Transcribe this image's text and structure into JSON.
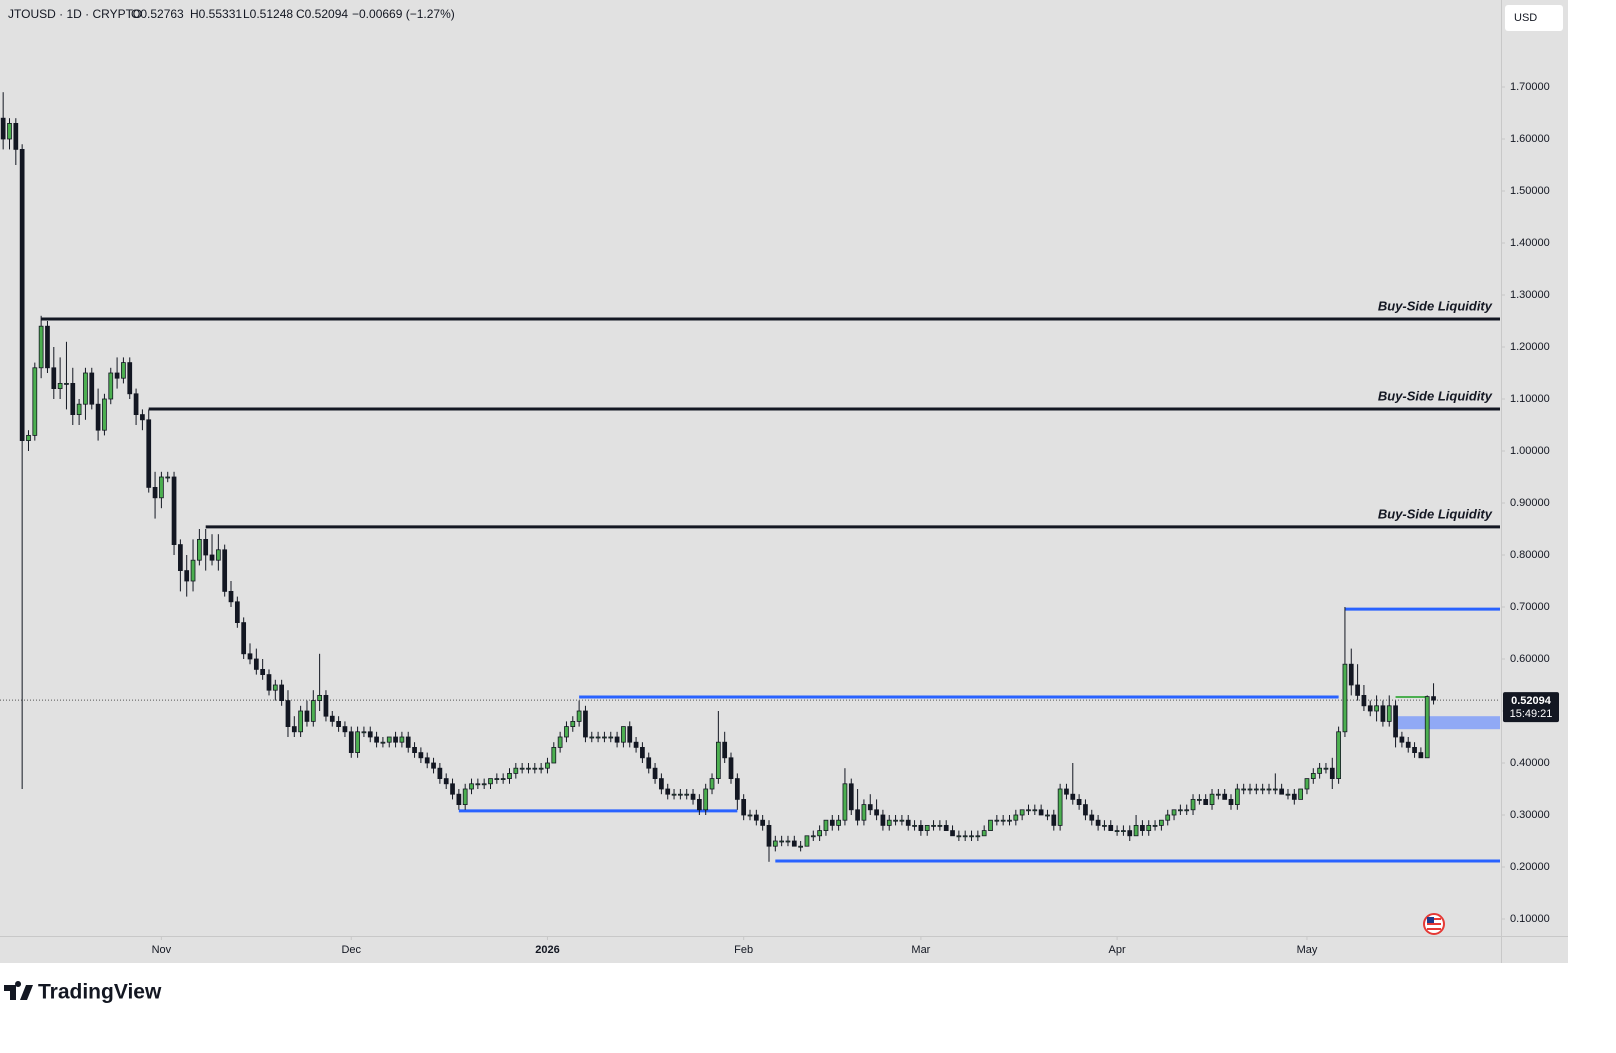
{
  "chart_data": {
    "type": "candlestick",
    "header": {
      "symbol": "JTOUSD · 1D · CRYPTO",
      "open": "O0.52763",
      "high": "H0.55331",
      "low": "L0.51248",
      "close": "C0.52094",
      "change": "−0.00669 (−1.27%)"
    },
    "currency": "USD",
    "xlim": [
      -0.5,
      236.5
    ],
    "xticks": [
      {
        "value": 25,
        "label": "Nov"
      },
      {
        "value": 55,
        "label": "Dec"
      },
      {
        "value": 86,
        "label": "2026"
      },
      {
        "value": 117,
        "label": "Feb"
      },
      {
        "value": 145,
        "label": "Mar"
      },
      {
        "value": 176,
        "label": "Apr"
      },
      {
        "value": 206,
        "label": "May"
      }
    ],
    "ylim": [
      0.0673,
      1.8673
    ],
    "yticks": [
      {
        "value": 0.1,
        "label": "0.10000"
      },
      {
        "value": 0.2,
        "label": "0.20000"
      },
      {
        "value": 0.3,
        "label": "0.30000"
      },
      {
        "value": 0.4,
        "label": "0.40000"
      },
      {
        "value": 0.5,
        "label": "0.50000"
      },
      {
        "value": 0.6,
        "label": "0.60000"
      },
      {
        "value": 0.7,
        "label": "0.70000"
      },
      {
        "value": 0.8,
        "label": "0.80000"
      },
      {
        "value": 0.9,
        "label": "0.90000"
      },
      {
        "value": 1.0,
        "label": "1.00000"
      },
      {
        "value": 1.1,
        "label": "1.10000"
      },
      {
        "value": 1.2,
        "label": "1.20000"
      },
      {
        "value": 1.3,
        "label": "1.30000"
      },
      {
        "value": 1.4,
        "label": "1.40000"
      },
      {
        "value": 1.5,
        "label": "1.50000"
      },
      {
        "value": 1.6,
        "label": "1.60000"
      },
      {
        "value": 1.7,
        "label": "1.70000"
      }
    ],
    "up_color": "#4caf50",
    "down_color": "#131722",
    "candles": [
      [
        1.64,
        1.69,
        1.58,
        1.6
      ],
      [
        1.6,
        1.64,
        1.58,
        1.63
      ],
      [
        1.63,
        1.64,
        1.55,
        1.58
      ],
      [
        1.58,
        1.59,
        0.35,
        1.02
      ],
      [
        1.02,
        1.04,
        1.0,
        1.03
      ],
      [
        1.03,
        1.17,
        1.02,
        1.16
      ],
      [
        1.16,
        1.26,
        1.14,
        1.24
      ],
      [
        1.24,
        1.25,
        1.15,
        1.16
      ],
      [
        1.16,
        1.2,
        1.1,
        1.12
      ],
      [
        1.12,
        1.18,
        1.1,
        1.13
      ],
      [
        1.13,
        1.21,
        1.08,
        1.13
      ],
      [
        1.13,
        1.16,
        1.05,
        1.07
      ],
      [
        1.07,
        1.1,
        1.05,
        1.09
      ],
      [
        1.09,
        1.16,
        1.06,
        1.15
      ],
      [
        1.15,
        1.16,
        1.08,
        1.09
      ],
      [
        1.09,
        1.12,
        1.02,
        1.04
      ],
      [
        1.04,
        1.11,
        1.03,
        1.1
      ],
      [
        1.1,
        1.16,
        1.09,
        1.15
      ],
      [
        1.15,
        1.18,
        1.12,
        1.14
      ],
      [
        1.14,
        1.18,
        1.13,
        1.17
      ],
      [
        1.17,
        1.18,
        1.1,
        1.11
      ],
      [
        1.11,
        1.12,
        1.05,
        1.07
      ],
      [
        1.07,
        1.08,
        1.04,
        1.06
      ],
      [
        1.06,
        1.08,
        0.92,
        0.93
      ],
      [
        0.93,
        0.96,
        0.87,
        0.91
      ],
      [
        0.91,
        0.96,
        0.89,
        0.95
      ],
      [
        0.95,
        0.96,
        0.94,
        0.95
      ],
      [
        0.95,
        0.96,
        0.8,
        0.82
      ],
      [
        0.82,
        0.83,
        0.73,
        0.77
      ],
      [
        0.77,
        0.8,
        0.72,
        0.75
      ],
      [
        0.75,
        0.83,
        0.73,
        0.79
      ],
      [
        0.79,
        0.85,
        0.78,
        0.83
      ],
      [
        0.83,
        0.85,
        0.77,
        0.8
      ],
      [
        0.8,
        0.84,
        0.78,
        0.79
      ],
      [
        0.79,
        0.84,
        0.77,
        0.81
      ],
      [
        0.81,
        0.82,
        0.72,
        0.73
      ],
      [
        0.73,
        0.75,
        0.7,
        0.71
      ],
      [
        0.71,
        0.72,
        0.66,
        0.67
      ],
      [
        0.67,
        0.68,
        0.6,
        0.61
      ],
      [
        0.61,
        0.63,
        0.59,
        0.6
      ],
      [
        0.6,
        0.62,
        0.57,
        0.58
      ],
      [
        0.58,
        0.6,
        0.56,
        0.57
      ],
      [
        0.57,
        0.58,
        0.53,
        0.54
      ],
      [
        0.54,
        0.56,
        0.52,
        0.55
      ],
      [
        0.55,
        0.56,
        0.51,
        0.52
      ],
      [
        0.52,
        0.54,
        0.45,
        0.47
      ],
      [
        0.47,
        0.49,
        0.45,
        0.46
      ],
      [
        0.46,
        0.51,
        0.45,
        0.5
      ],
      [
        0.5,
        0.52,
        0.47,
        0.48
      ],
      [
        0.48,
        0.54,
        0.47,
        0.52
      ],
      [
        0.52,
        0.61,
        0.5,
        0.53
      ],
      [
        0.53,
        0.54,
        0.48,
        0.49
      ],
      [
        0.49,
        0.5,
        0.47,
        0.48
      ],
      [
        0.48,
        0.49,
        0.46,
        0.47
      ],
      [
        0.47,
        0.48,
        0.45,
        0.46
      ],
      [
        0.46,
        0.47,
        0.41,
        0.42
      ],
      [
        0.42,
        0.47,
        0.41,
        0.46
      ],
      [
        0.46,
        0.47,
        0.45,
        0.46
      ],
      [
        0.46,
        0.47,
        0.44,
        0.45
      ],
      [
        0.45,
        0.46,
        0.43,
        0.44
      ],
      [
        0.44,
        0.45,
        0.43,
        0.44
      ],
      [
        0.44,
        0.45,
        0.43,
        0.45
      ],
      [
        0.45,
        0.46,
        0.43,
        0.44
      ],
      [
        0.44,
        0.46,
        0.43,
        0.45
      ],
      [
        0.45,
        0.46,
        0.42,
        0.43
      ],
      [
        0.43,
        0.44,
        0.41,
        0.42
      ],
      [
        0.42,
        0.43,
        0.4,
        0.41
      ],
      [
        0.41,
        0.42,
        0.39,
        0.4
      ],
      [
        0.4,
        0.41,
        0.38,
        0.39
      ],
      [
        0.39,
        0.4,
        0.36,
        0.37
      ],
      [
        0.37,
        0.38,
        0.35,
        0.36
      ],
      [
        0.36,
        0.37,
        0.33,
        0.34
      ],
      [
        0.34,
        0.35,
        0.31,
        0.32
      ],
      [
        0.32,
        0.36,
        0.31,
        0.35
      ],
      [
        0.35,
        0.37,
        0.34,
        0.36
      ],
      [
        0.36,
        0.37,
        0.35,
        0.36
      ],
      [
        0.36,
        0.37,
        0.35,
        0.36
      ],
      [
        0.36,
        0.37,
        0.35,
        0.37
      ],
      [
        0.37,
        0.38,
        0.36,
        0.37
      ],
      [
        0.37,
        0.38,
        0.36,
        0.37
      ],
      [
        0.37,
        0.39,
        0.36,
        0.38
      ],
      [
        0.38,
        0.4,
        0.37,
        0.39
      ],
      [
        0.39,
        0.4,
        0.38,
        0.39
      ],
      [
        0.39,
        0.4,
        0.38,
        0.39
      ],
      [
        0.39,
        0.4,
        0.38,
        0.39
      ],
      [
        0.39,
        0.4,
        0.38,
        0.39
      ],
      [
        0.39,
        0.41,
        0.38,
        0.4
      ],
      [
        0.4,
        0.44,
        0.4,
        0.43
      ],
      [
        0.43,
        0.46,
        0.42,
        0.45
      ],
      [
        0.45,
        0.48,
        0.44,
        0.47
      ],
      [
        0.47,
        0.49,
        0.46,
        0.48
      ],
      [
        0.48,
        0.52,
        0.47,
        0.5
      ],
      [
        0.5,
        0.51,
        0.44,
        0.45
      ],
      [
        0.45,
        0.46,
        0.44,
        0.45
      ],
      [
        0.45,
        0.46,
        0.44,
        0.45
      ],
      [
        0.45,
        0.46,
        0.44,
        0.45
      ],
      [
        0.45,
        0.46,
        0.44,
        0.45
      ],
      [
        0.45,
        0.46,
        0.43,
        0.44
      ],
      [
        0.44,
        0.47,
        0.43,
        0.47
      ],
      [
        0.47,
        0.48,
        0.43,
        0.44
      ],
      [
        0.44,
        0.45,
        0.42,
        0.43
      ],
      [
        0.43,
        0.44,
        0.4,
        0.41
      ],
      [
        0.41,
        0.42,
        0.38,
        0.39
      ],
      [
        0.39,
        0.4,
        0.36,
        0.37
      ],
      [
        0.37,
        0.38,
        0.34,
        0.35
      ],
      [
        0.35,
        0.36,
        0.33,
        0.34
      ],
      [
        0.34,
        0.35,
        0.33,
        0.34
      ],
      [
        0.34,
        0.35,
        0.33,
        0.34
      ],
      [
        0.34,
        0.35,
        0.33,
        0.34
      ],
      [
        0.34,
        0.35,
        0.32,
        0.33
      ],
      [
        0.33,
        0.34,
        0.3,
        0.31
      ],
      [
        0.31,
        0.36,
        0.3,
        0.35
      ],
      [
        0.35,
        0.38,
        0.34,
        0.37
      ],
      [
        0.37,
        0.5,
        0.36,
        0.44
      ],
      [
        0.44,
        0.46,
        0.4,
        0.41
      ],
      [
        0.41,
        0.42,
        0.36,
        0.37
      ],
      [
        0.37,
        0.38,
        0.31,
        0.33
      ],
      [
        0.33,
        0.34,
        0.29,
        0.3
      ],
      [
        0.3,
        0.31,
        0.29,
        0.3
      ],
      [
        0.3,
        0.31,
        0.28,
        0.29
      ],
      [
        0.29,
        0.3,
        0.27,
        0.28
      ],
      [
        0.28,
        0.29,
        0.21,
        0.24
      ],
      [
        0.24,
        0.26,
        0.23,
        0.25
      ],
      [
        0.25,
        0.26,
        0.24,
        0.25
      ],
      [
        0.25,
        0.26,
        0.24,
        0.25
      ],
      [
        0.25,
        0.26,
        0.24,
        0.24
      ],
      [
        0.24,
        0.25,
        0.23,
        0.24
      ],
      [
        0.24,
        0.26,
        0.24,
        0.26
      ],
      [
        0.26,
        0.27,
        0.25,
        0.26
      ],
      [
        0.26,
        0.28,
        0.25,
        0.27
      ],
      [
        0.27,
        0.29,
        0.26,
        0.29
      ],
      [
        0.29,
        0.3,
        0.27,
        0.28
      ],
      [
        0.28,
        0.3,
        0.27,
        0.29
      ],
      [
        0.29,
        0.39,
        0.28,
        0.36
      ],
      [
        0.36,
        0.37,
        0.3,
        0.31
      ],
      [
        0.31,
        0.35,
        0.28,
        0.29
      ],
      [
        0.29,
        0.33,
        0.28,
        0.32
      ],
      [
        0.32,
        0.34,
        0.3,
        0.31
      ],
      [
        0.31,
        0.33,
        0.29,
        0.3
      ],
      [
        0.3,
        0.31,
        0.27,
        0.28
      ],
      [
        0.28,
        0.3,
        0.27,
        0.29
      ],
      [
        0.29,
        0.3,
        0.28,
        0.29
      ],
      [
        0.29,
        0.3,
        0.28,
        0.29
      ],
      [
        0.29,
        0.3,
        0.27,
        0.28
      ],
      [
        0.28,
        0.29,
        0.27,
        0.28
      ],
      [
        0.28,
        0.29,
        0.26,
        0.27
      ],
      [
        0.27,
        0.28,
        0.26,
        0.28
      ],
      [
        0.28,
        0.29,
        0.27,
        0.28
      ],
      [
        0.28,
        0.29,
        0.27,
        0.28
      ],
      [
        0.28,
        0.29,
        0.27,
        0.27
      ],
      [
        0.27,
        0.28,
        0.26,
        0.26
      ],
      [
        0.26,
        0.27,
        0.25,
        0.26
      ],
      [
        0.26,
        0.27,
        0.25,
        0.26
      ],
      [
        0.26,
        0.27,
        0.25,
        0.26
      ],
      [
        0.26,
        0.27,
        0.25,
        0.26
      ],
      [
        0.26,
        0.28,
        0.26,
        0.27
      ],
      [
        0.27,
        0.29,
        0.27,
        0.29
      ],
      [
        0.29,
        0.3,
        0.28,
        0.29
      ],
      [
        0.29,
        0.3,
        0.28,
        0.29
      ],
      [
        0.29,
        0.3,
        0.28,
        0.29
      ],
      [
        0.29,
        0.31,
        0.28,
        0.3
      ],
      [
        0.3,
        0.31,
        0.29,
        0.31
      ],
      [
        0.31,
        0.32,
        0.3,
        0.31
      ],
      [
        0.31,
        0.32,
        0.3,
        0.31
      ],
      [
        0.31,
        0.32,
        0.3,
        0.3
      ],
      [
        0.3,
        0.31,
        0.29,
        0.3
      ],
      [
        0.3,
        0.31,
        0.27,
        0.28
      ],
      [
        0.28,
        0.36,
        0.27,
        0.35
      ],
      [
        0.35,
        0.36,
        0.33,
        0.34
      ],
      [
        0.34,
        0.4,
        0.32,
        0.33
      ],
      [
        0.33,
        0.34,
        0.31,
        0.32
      ],
      [
        0.32,
        0.33,
        0.29,
        0.3
      ],
      [
        0.3,
        0.31,
        0.28,
        0.29
      ],
      [
        0.29,
        0.3,
        0.27,
        0.28
      ],
      [
        0.28,
        0.29,
        0.27,
        0.28
      ],
      [
        0.28,
        0.29,
        0.27,
        0.27
      ],
      [
        0.27,
        0.28,
        0.26,
        0.27
      ],
      [
        0.27,
        0.28,
        0.26,
        0.27
      ],
      [
        0.27,
        0.28,
        0.25,
        0.26
      ],
      [
        0.26,
        0.3,
        0.26,
        0.28
      ],
      [
        0.28,
        0.29,
        0.26,
        0.27
      ],
      [
        0.27,
        0.29,
        0.26,
        0.28
      ],
      [
        0.28,
        0.29,
        0.27,
        0.28
      ],
      [
        0.28,
        0.29,
        0.27,
        0.29
      ],
      [
        0.29,
        0.31,
        0.28,
        0.3
      ],
      [
        0.3,
        0.31,
        0.29,
        0.31
      ],
      [
        0.31,
        0.32,
        0.3,
        0.31
      ],
      [
        0.31,
        0.32,
        0.3,
        0.31
      ],
      [
        0.31,
        0.34,
        0.3,
        0.33
      ],
      [
        0.33,
        0.34,
        0.32,
        0.33
      ],
      [
        0.33,
        0.34,
        0.32,
        0.32
      ],
      [
        0.32,
        0.35,
        0.31,
        0.34
      ],
      [
        0.34,
        0.35,
        0.33,
        0.34
      ],
      [
        0.34,
        0.35,
        0.33,
        0.33
      ],
      [
        0.33,
        0.34,
        0.31,
        0.32
      ],
      [
        0.32,
        0.36,
        0.31,
        0.35
      ],
      [
        0.35,
        0.36,
        0.34,
        0.35
      ],
      [
        0.35,
        0.36,
        0.34,
        0.35
      ],
      [
        0.35,
        0.36,
        0.34,
        0.35
      ],
      [
        0.35,
        0.36,
        0.34,
        0.35
      ],
      [
        0.35,
        0.36,
        0.34,
        0.35
      ],
      [
        0.35,
        0.38,
        0.34,
        0.35
      ],
      [
        0.35,
        0.36,
        0.34,
        0.34
      ],
      [
        0.34,
        0.35,
        0.33,
        0.34
      ],
      [
        0.34,
        0.35,
        0.32,
        0.33
      ],
      [
        0.33,
        0.35,
        0.33,
        0.35
      ],
      [
        0.35,
        0.37,
        0.34,
        0.37
      ],
      [
        0.37,
        0.39,
        0.36,
        0.38
      ],
      [
        0.38,
        0.4,
        0.37,
        0.39
      ],
      [
        0.39,
        0.4,
        0.38,
        0.39
      ],
      [
        0.39,
        0.41,
        0.35,
        0.37
      ],
      [
        0.37,
        0.47,
        0.36,
        0.46
      ],
      [
        0.46,
        0.7,
        0.45,
        0.59
      ],
      [
        0.59,
        0.62,
        0.53,
        0.55
      ],
      [
        0.55,
        0.59,
        0.52,
        0.53
      ],
      [
        0.53,
        0.55,
        0.5,
        0.51
      ],
      [
        0.51,
        0.52,
        0.49,
        0.5
      ],
      [
        0.5,
        0.53,
        0.48,
        0.51
      ],
      [
        0.51,
        0.52,
        0.47,
        0.48
      ],
      [
        0.48,
        0.53,
        0.47,
        0.51
      ],
      [
        0.51,
        0.52,
        0.43,
        0.45
      ],
      [
        0.45,
        0.46,
        0.43,
        0.44
      ],
      [
        0.44,
        0.45,
        0.42,
        0.43
      ],
      [
        0.43,
        0.44,
        0.41,
        0.42
      ],
      [
        0.42,
        0.43,
        0.41,
        0.41
      ],
      [
        0.41,
        0.53,
        0.41,
        0.52763
      ],
      [
        0.52763,
        0.55331,
        0.51248,
        0.52094
      ]
    ],
    "levels": [
      {
        "label": "Buy-Side Liquidity",
        "value": 1.2538,
        "start": 6,
        "end": 236.5,
        "color": "#131722"
      },
      {
        "label": "Buy-Side Liquidity",
        "value": 1.0808,
        "start": 23,
        "end": 236.5,
        "color": "#131722"
      },
      {
        "label": "Buy-Side Liquidity",
        "value": 0.854,
        "start": 32,
        "end": 236.5,
        "color": "#131722"
      },
      {
        "value": 0.696,
        "start": 212,
        "end": 236.5,
        "color": "#2962ff"
      },
      {
        "value": 0.527,
        "start": 91,
        "end": 211,
        "color": "#2962ff"
      },
      {
        "value": 0.308,
        "start": 72,
        "end": 116,
        "color": "#2962ff"
      },
      {
        "value": 0.2115,
        "start": 122,
        "end": 236.5,
        "color": "#2962ff"
      },
      {
        "value": 0.527,
        "start": 220,
        "end": 225,
        "color": "#4caf50"
      }
    ],
    "zone": {
      "top": 0.49,
      "bottom": 0.465,
      "start": 220,
      "end": 236.5,
      "color": "#90a9f5"
    },
    "last_price": 0.52094,
    "countdown": "15:49:21"
  },
  "footer": {
    "brand": "TradingView"
  }
}
